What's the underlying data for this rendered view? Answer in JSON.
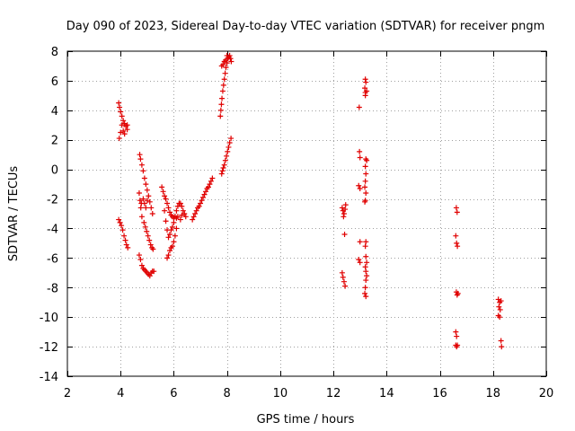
{
  "chart_data": {
    "type": "scatter",
    "title": "Day 090 of 2023, Sidereal Day-to-day VTEC variation (SDTVAR) for receiver pngm",
    "xlabel": "GPS time / hours",
    "ylabel": "SDTVAR / TECUs",
    "xlim": [
      2,
      20
    ],
    "ylim": [
      -14,
      8
    ],
    "xticks": [
      2,
      4,
      6,
      8,
      10,
      12,
      14,
      16,
      18,
      20
    ],
    "yticks": [
      -14,
      -12,
      -10,
      -8,
      -6,
      -4,
      -2,
      0,
      2,
      4,
      6,
      8
    ],
    "grid": true,
    "marker": "+",
    "colors": {
      "series": "#e00000",
      "grid": "#a0a0a0",
      "axis": "#000000"
    },
    "series": [
      {
        "name": "SDTVAR",
        "points": [
          [
            3.93,
            4.5
          ],
          [
            3.96,
            4.2
          ],
          [
            4.0,
            3.9
          ],
          [
            4.05,
            3.6
          ],
          [
            4.1,
            3.3
          ],
          [
            4.15,
            3.1
          ],
          [
            4.2,
            2.9
          ],
          [
            4.25,
            2.7
          ],
          [
            3.95,
            2.1
          ],
          [
            4.0,
            2.5
          ],
          [
            4.05,
            3.0
          ],
          [
            4.1,
            2.6
          ],
          [
            4.15,
            2.4
          ],
          [
            4.25,
            3.0
          ],
          [
            3.93,
            -3.4
          ],
          [
            3.98,
            -3.6
          ],
          [
            4.03,
            -3.8
          ],
          [
            4.08,
            -4.1
          ],
          [
            4.13,
            -4.5
          ],
          [
            4.18,
            -4.8
          ],
          [
            4.22,
            -5.1
          ],
          [
            4.27,
            -5.3
          ],
          [
            4.72,
            1.0
          ],
          [
            4.75,
            0.7
          ],
          [
            4.8,
            0.3
          ],
          [
            4.85,
            -0.1
          ],
          [
            4.9,
            -0.6
          ],
          [
            4.95,
            -1.0
          ],
          [
            5.0,
            -1.4
          ],
          [
            5.05,
            -1.8
          ],
          [
            5.1,
            -2.2
          ],
          [
            5.15,
            -2.6
          ],
          [
            5.2,
            -3.0
          ],
          [
            4.7,
            -1.6
          ],
          [
            4.73,
            -2.1
          ],
          [
            4.76,
            -2.6
          ],
          [
            4.8,
            -3.2
          ],
          [
            4.78,
            -2.3
          ],
          [
            4.85,
            -2.0
          ],
          [
            4.9,
            -2.3
          ],
          [
            4.95,
            -2.6
          ],
          [
            5.0,
            -2.1
          ],
          [
            4.7,
            -5.8
          ],
          [
            4.75,
            -6.1
          ],
          [
            4.8,
            -6.5
          ],
          [
            4.85,
            -6.7
          ],
          [
            4.9,
            -6.8
          ],
          [
            4.95,
            -6.9
          ],
          [
            5.0,
            -7.0
          ],
          [
            5.05,
            -7.1
          ],
          [
            5.1,
            -7.2
          ],
          [
            5.15,
            -7.0
          ],
          [
            5.2,
            -6.9
          ],
          [
            5.25,
            -6.9
          ],
          [
            4.88,
            -3.6
          ],
          [
            4.93,
            -3.9
          ],
          [
            4.98,
            -4.2
          ],
          [
            5.03,
            -4.5
          ],
          [
            5.08,
            -4.8
          ],
          [
            5.13,
            -5.1
          ],
          [
            5.18,
            -5.3
          ],
          [
            5.22,
            -5.4
          ],
          [
            5.55,
            -1.2
          ],
          [
            5.6,
            -1.5
          ],
          [
            5.65,
            -1.8
          ],
          [
            5.7,
            -2.0
          ],
          [
            5.75,
            -2.3
          ],
          [
            5.8,
            -2.6
          ],
          [
            5.85,
            -2.9
          ],
          [
            5.9,
            -3.1
          ],
          [
            5.95,
            -3.2
          ],
          [
            6.0,
            -3.3
          ],
          [
            6.05,
            -3.2
          ],
          [
            6.1,
            -3.3
          ],
          [
            6.15,
            -3.2
          ],
          [
            5.65,
            -2.8
          ],
          [
            5.7,
            -3.5
          ],
          [
            5.75,
            -4.1
          ],
          [
            5.8,
            -4.6
          ],
          [
            5.85,
            -4.4
          ],
          [
            5.9,
            -4.1
          ],
          [
            5.95,
            -3.9
          ],
          [
            6.0,
            -3.6
          ],
          [
            6.05,
            -3.2
          ],
          [
            6.1,
            -2.8
          ],
          [
            6.15,
            -2.5
          ],
          [
            6.2,
            -2.3
          ],
          [
            6.25,
            -2.3
          ],
          [
            6.3,
            -2.5
          ],
          [
            6.35,
            -2.8
          ],
          [
            6.4,
            -3.0
          ],
          [
            6.45,
            -3.2
          ],
          [
            5.75,
            -6.0
          ],
          [
            5.8,
            -5.8
          ],
          [
            5.85,
            -5.5
          ],
          [
            5.9,
            -5.3
          ],
          [
            5.95,
            -5.2
          ],
          [
            6.0,
            -4.9
          ],
          [
            6.05,
            -4.5
          ],
          [
            6.1,
            -4.0
          ],
          [
            6.25,
            -3.4
          ],
          [
            6.3,
            -3.1
          ],
          [
            6.7,
            -3.4
          ],
          [
            6.75,
            -3.2
          ],
          [
            6.8,
            -3.0
          ],
          [
            6.85,
            -2.8
          ],
          [
            6.9,
            -2.6
          ],
          [
            6.95,
            -2.5
          ],
          [
            7.0,
            -2.3
          ],
          [
            7.05,
            -2.1
          ],
          [
            7.1,
            -1.9
          ],
          [
            7.15,
            -1.7
          ],
          [
            7.2,
            -1.5
          ],
          [
            7.25,
            -1.3
          ],
          [
            7.3,
            -1.2
          ],
          [
            7.35,
            -1.0
          ],
          [
            7.4,
            -0.8
          ],
          [
            7.45,
            -0.6
          ],
          [
            7.75,
            3.6
          ],
          [
            7.77,
            4.0
          ],
          [
            7.79,
            4.4
          ],
          [
            7.81,
            4.8
          ],
          [
            7.84,
            5.3
          ],
          [
            7.87,
            5.7
          ],
          [
            7.9,
            6.1
          ],
          [
            7.93,
            6.5
          ],
          [
            7.96,
            6.9
          ],
          [
            8.0,
            7.2
          ],
          [
            8.03,
            7.5
          ],
          [
            8.07,
            7.6
          ],
          [
            8.1,
            7.7
          ],
          [
            8.13,
            7.5
          ],
          [
            8.16,
            7.3
          ],
          [
            7.8,
            7.0
          ],
          [
            7.85,
            7.1
          ],
          [
            7.9,
            7.3
          ],
          [
            7.95,
            7.4
          ],
          [
            8.0,
            7.7
          ],
          [
            7.8,
            -0.3
          ],
          [
            7.83,
            -0.1
          ],
          [
            7.86,
            0.1
          ],
          [
            7.9,
            0.3
          ],
          [
            7.94,
            0.6
          ],
          [
            7.98,
            0.9
          ],
          [
            8.02,
            1.2
          ],
          [
            8.06,
            1.5
          ],
          [
            8.1,
            1.8
          ],
          [
            8.15,
            2.1
          ],
          [
            12.33,
            -2.6
          ],
          [
            12.36,
            -2.8
          ],
          [
            12.4,
            -3.0
          ],
          [
            12.44,
            -2.7
          ],
          [
            12.46,
            -2.4
          ],
          [
            12.38,
            -3.2
          ],
          [
            12.42,
            -4.4
          ],
          [
            12.33,
            -7.0
          ],
          [
            12.36,
            -7.3
          ],
          [
            12.4,
            -7.6
          ],
          [
            12.44,
            -7.9
          ],
          [
            12.97,
            4.2
          ],
          [
            13.2,
            6.1
          ],
          [
            13.22,
            5.9
          ],
          [
            13.18,
            5.5
          ],
          [
            13.2,
            5.2
          ],
          [
            13.25,
            5.3
          ],
          [
            13.2,
            5.0
          ],
          [
            12.98,
            1.2
          ],
          [
            13.0,
            0.8
          ],
          [
            12.95,
            -1.1
          ],
          [
            13.0,
            -1.3
          ],
          [
            13.22,
            0.7
          ],
          [
            13.25,
            0.6
          ],
          [
            13.2,
            0.2
          ],
          [
            13.22,
            -0.3
          ],
          [
            13.2,
            -0.8
          ],
          [
            13.18,
            -1.2
          ],
          [
            13.22,
            -1.6
          ],
          [
            13.2,
            -2.1
          ],
          [
            13.18,
            -2.2
          ],
          [
            13.0,
            -4.9
          ],
          [
            12.95,
            -6.1
          ],
          [
            13.0,
            -6.3
          ],
          [
            13.22,
            -4.9
          ],
          [
            13.2,
            -5.2
          ],
          [
            13.22,
            -5.9
          ],
          [
            13.25,
            -6.3
          ],
          [
            13.2,
            -6.6
          ],
          [
            13.22,
            -6.9
          ],
          [
            13.25,
            -7.2
          ],
          [
            13.22,
            -7.5
          ],
          [
            13.2,
            -8.0
          ],
          [
            13.18,
            -8.4
          ],
          [
            13.22,
            -8.6
          ],
          [
            16.62,
            -2.6
          ],
          [
            16.65,
            -2.9
          ],
          [
            16.6,
            -4.5
          ],
          [
            16.63,
            -5.0
          ],
          [
            16.66,
            -5.2
          ],
          [
            16.62,
            -8.3
          ],
          [
            16.65,
            -8.5
          ],
          [
            16.68,
            -8.4
          ],
          [
            16.6,
            -11.0
          ],
          [
            16.63,
            -11.3
          ],
          [
            16.6,
            -11.9
          ],
          [
            16.63,
            -12.0
          ],
          [
            16.66,
            -11.9
          ],
          [
            18.2,
            -8.8
          ],
          [
            18.25,
            -9.0
          ],
          [
            18.3,
            -8.9
          ],
          [
            18.22,
            -9.3
          ],
          [
            18.27,
            -9.5
          ],
          [
            18.2,
            -9.9
          ],
          [
            18.25,
            -10.0
          ],
          [
            18.3,
            -11.6
          ],
          [
            18.32,
            -12.0
          ]
        ]
      }
    ]
  }
}
